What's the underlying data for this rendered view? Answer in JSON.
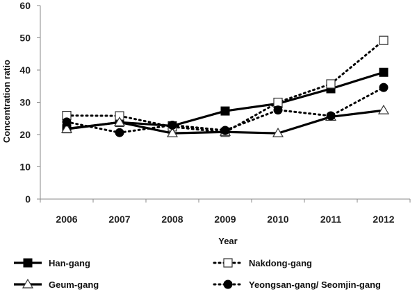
{
  "chart_data": {
    "type": "line",
    "xlabel": "Year",
    "ylabel": "Concentration ratio",
    "ylim": [
      0,
      60
    ],
    "yticks": [
      0,
      10,
      20,
      30,
      40,
      50,
      60
    ],
    "categories": [
      "2006",
      "2007",
      "2008",
      "2009",
      "2010",
      "2011",
      "2012"
    ],
    "grid": false,
    "legend_position": "bottom",
    "series": [
      {
        "name": "Han-gang",
        "values": [
          21.8,
          23.8,
          22.7,
          27.3,
          29.6,
          34.2,
          39.3
        ],
        "line": "solid",
        "marker": "filled-square",
        "color": "#000000"
      },
      {
        "name": "Nakdong-gang",
        "values": [
          25.9,
          25.8,
          22.4,
          20.7,
          30.0,
          35.7,
          49.2
        ],
        "line": "dotted",
        "marker": "open-square",
        "color": "#000000"
      },
      {
        "name": "Geum-gang",
        "values": [
          21.7,
          23.8,
          20.4,
          20.8,
          20.4,
          25.5,
          27.5
        ],
        "line": "solid",
        "marker": "open-triangle",
        "color": "#000000"
      },
      {
        "name": "Yeongsan-gang/ Seomjin-gang",
        "values": [
          23.9,
          20.6,
          22.9,
          21.3,
          27.6,
          25.8,
          34.6
        ],
        "line": "dotted",
        "marker": "filled-circle",
        "color": "#000000"
      }
    ]
  }
}
